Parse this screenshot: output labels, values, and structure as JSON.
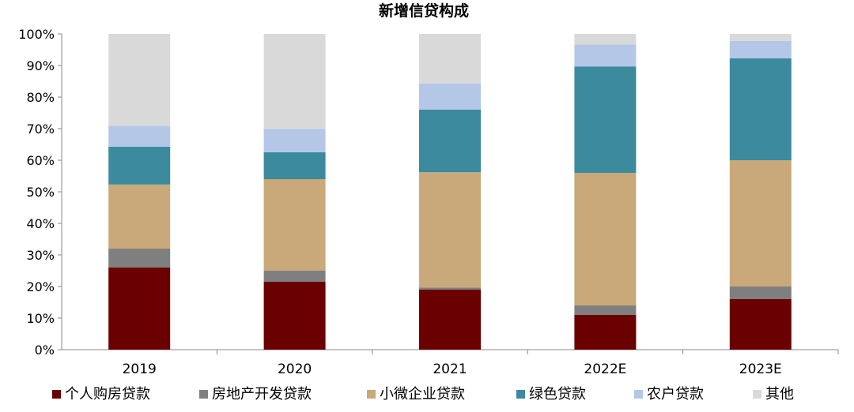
{
  "chart_data": {
    "type": "bar",
    "stacked": true,
    "percent": true,
    "title": "新增信贷构成",
    "categories": [
      "2019",
      "2020",
      "2021",
      "2022E",
      "2023E"
    ],
    "ylim": [
      0,
      100
    ],
    "yticks": [
      "0%",
      "10%",
      "20%",
      "30%",
      "40%",
      "50%",
      "60%",
      "70%",
      "80%",
      "90%",
      "100%"
    ],
    "legend_position": "bottom",
    "series": [
      {
        "name": "个人购房贷款",
        "color": "#6B0000",
        "values": [
          26,
          21.5,
          19,
          11,
          16
        ]
      },
      {
        "name": "房地产开发贷款",
        "color": "#7F7F7F",
        "values": [
          6,
          3.5,
          0.7,
          3,
          4
        ]
      },
      {
        "name": "小微企业贷款",
        "color": "#C9A97A",
        "values": [
          20.3,
          29,
          36.5,
          42,
          40
        ]
      },
      {
        "name": "绿色贷款",
        "color": "#3C8A9E",
        "values": [
          12,
          8.5,
          19.8,
          33.7,
          32.3
        ]
      },
      {
        "name": "农户贷款",
        "color": "#B4C7E7",
        "values": [
          6.6,
          7.4,
          8.3,
          7,
          5.5
        ]
      },
      {
        "name": "其他",
        "color": "#D9D9D9",
        "values": [
          29.1,
          30.1,
          15.7,
          3.3,
          2.2
        ]
      }
    ]
  }
}
